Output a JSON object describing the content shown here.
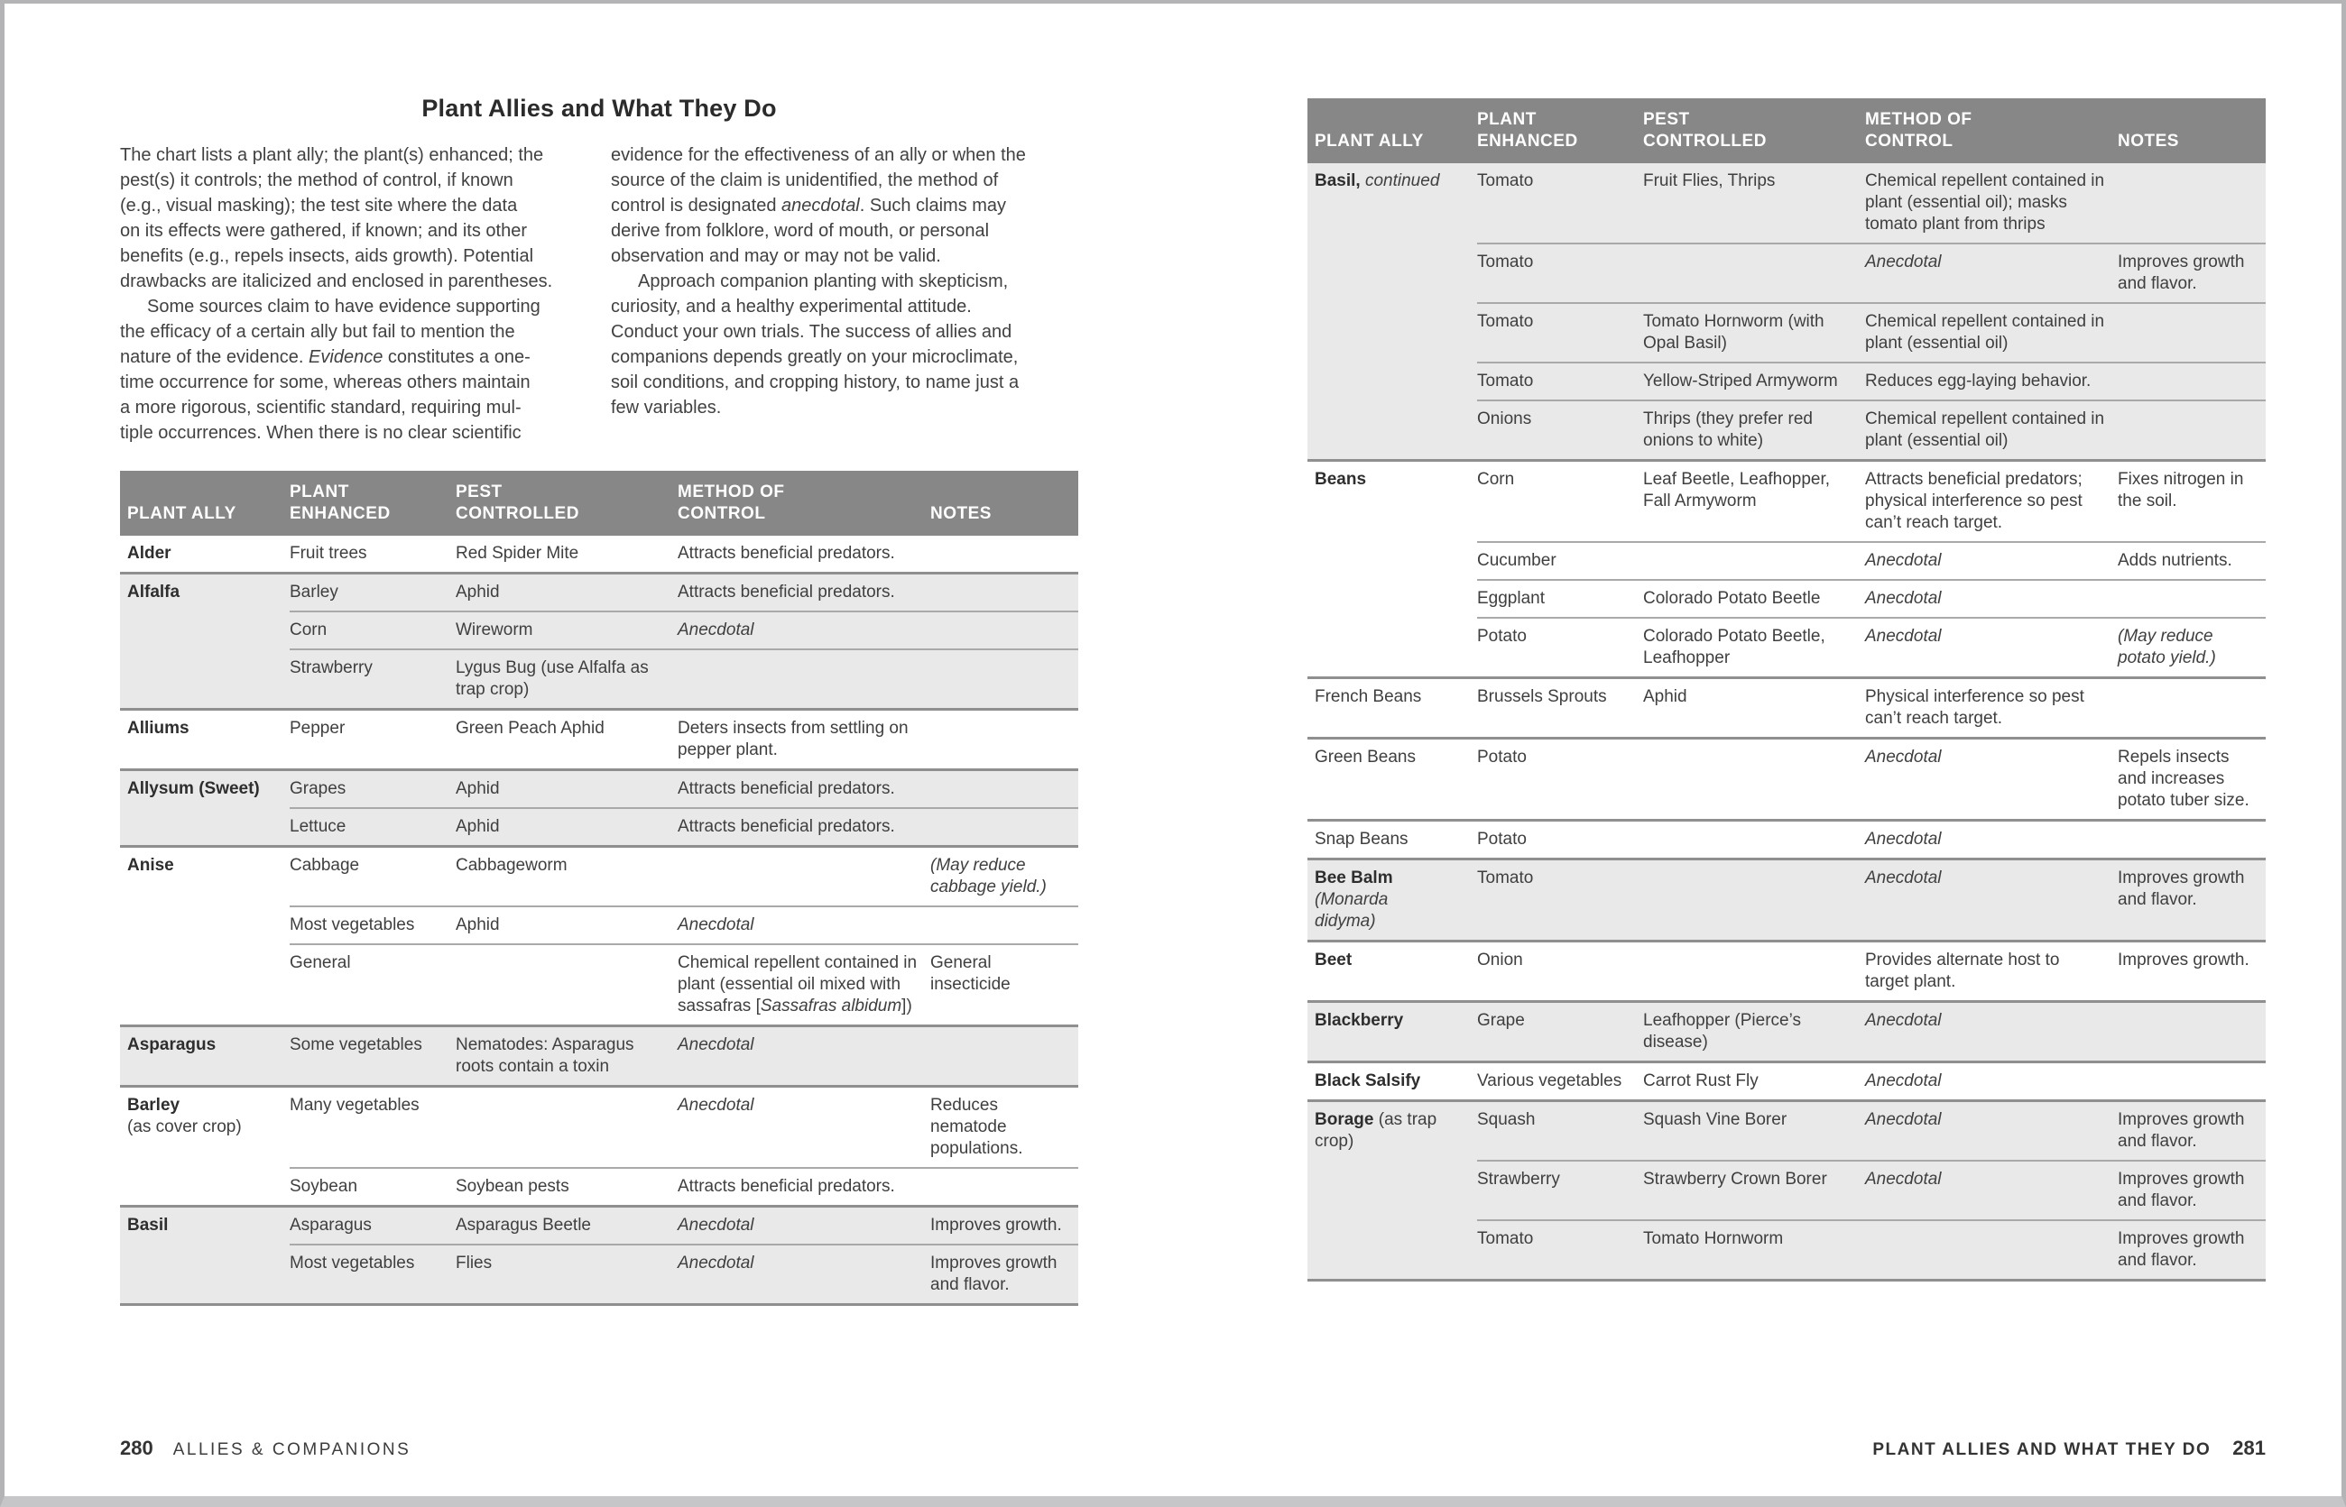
{
  "page_left": {
    "title": "Plant Allies and What They Do",
    "intro": {
      "col1_p1": "The chart lists a plant ally; the plant(s) enhanced; the<br>pest(s) it controls; the method of control, if known<br>(e.g., visual masking); the test site where the data<br>on its effects were gathered, if known; and its other<br>benefits (e.g., repels insects, aids growth). Potential<br>drawbacks are italicized and enclosed in parentheses.",
      "col1_p2": "Some sources claim to have evidence supporting<br>the efficacy of a certain ally but fail to mention the<br>nature of the evidence. <i>Evidence</i> constitutes a one-<br>time occurrence for some, whereas others maintain<br>a more rigorous, scientific standard, requiring mul-<br>tiple occurrences. When there is no clear scientific",
      "col2_p1": "evidence for the effectiveness of an ally or when the<br>source of the claim is unidentified, the method of<br>control is designated <i>anecdotal</i>. Such claims may<br>derive from folklore, word of mouth, or personal<br>observation and may or may not be valid.",
      "col2_p2": "Approach companion planting with skepticism,<br>curiosity, and a healthy experimental attitude.<br>Conduct your own trials. The success of allies and<br>companions depends greatly on your microclimate,<br>soil conditions, and cropping history, to name just a<br>few variables."
    },
    "footer": {
      "page_number": "280",
      "section": "ALLIES & COMPANIONS"
    }
  },
  "page_right": {
    "footer": {
      "section": "PLANT ALLIES AND WHAT THEY DO",
      "page_number": "281"
    }
  },
  "table": {
    "headers": [
      "PLANT ALLY",
      "PLANT<br>ENHANCED",
      "PEST<br>CONTROLLED",
      "METHOD OF<br>CONTROL",
      "NOTES"
    ]
  },
  "tables": [
    {
      "id": "left-table",
      "groups": [
        {
          "ally": "<b>Alder</b>",
          "shaded": false,
          "rows": [
            {
              "enhanced": "Fruit trees",
              "pest": "Red Spider Mite",
              "method": "Attracts beneficial predators.",
              "notes": ""
            }
          ]
        },
        {
          "ally": "<b>Alfalfa</b>",
          "shaded": true,
          "rows": [
            {
              "enhanced": "Barley",
              "pest": "Aphid",
              "method": "Attracts beneficial predators.",
              "notes": ""
            },
            {
              "enhanced": "Corn",
              "pest": "Wireworm",
              "method": "<i>Anecdotal</i>",
              "notes": ""
            },
            {
              "enhanced": "Strawberry",
              "pest": "Lygus Bug (use Alfalfa as trap crop)",
              "method": "",
              "notes": ""
            }
          ]
        },
        {
          "ally": "<b>Alliums</b>",
          "shaded": false,
          "rows": [
            {
              "enhanced": "Pepper",
              "pest": "Green Peach Aphid",
              "method": "Deters insects from settling on pepper plant.",
              "notes": ""
            }
          ]
        },
        {
          "ally": "<b>Allysum (Sweet)</b>",
          "shaded": true,
          "rows": [
            {
              "enhanced": "Grapes",
              "pest": "Aphid",
              "method": "Attracts beneficial predators.",
              "notes": ""
            },
            {
              "enhanced": "Lettuce",
              "pest": "Aphid",
              "method": "Attracts beneficial predators.",
              "notes": ""
            }
          ]
        },
        {
          "ally": "<b>Anise</b>",
          "shaded": false,
          "rows": [
            {
              "enhanced": "Cabbage",
              "pest": "Cabbageworm",
              "method": "",
              "notes": "<i>(May reduce cabbage yield.)</i>"
            },
            {
              "enhanced": "Most vegetables",
              "pest": "Aphid",
              "method": "<i>Anecdotal</i>",
              "notes": ""
            },
            {
              "enhanced": "General",
              "pest": "",
              "method": "Chemical repellent contained in plant (essential oil mixed with sassafras [<i>Sassafras albidum</i>])",
              "notes": "General insecticide"
            }
          ]
        },
        {
          "ally": "<b>Asparagus</b>",
          "shaded": true,
          "rows": [
            {
              "enhanced": "Some vegetables",
              "pest": "Nematodes: Asparagus roots contain a toxin",
              "method": "<i>Anecdotal</i>",
              "notes": ""
            }
          ]
        },
        {
          "ally": "<b>Barley</b><br>(as cover crop)",
          "shaded": false,
          "rows": [
            {
              "enhanced": "Many vegetables",
              "pest": "",
              "method": "<i>Anecdotal</i>",
              "notes": "Reduces nematode populations."
            },
            {
              "enhanced": "Soybean",
              "pest": "Soybean pests",
              "method": "Attracts beneficial predators.",
              "notes": ""
            }
          ]
        },
        {
          "ally": "<b>Basil</b>",
          "shaded": true,
          "rows": [
            {
              "enhanced": "Asparagus",
              "pest": "Asparagus Beetle",
              "method": "<i>Anecdotal</i>",
              "notes": "Improves growth."
            },
            {
              "enhanced": "Most vegetables",
              "pest": "Flies",
              "method": "<i>Anecdotal</i>",
              "notes": "Improves growth and flavor."
            }
          ]
        }
      ]
    },
    {
      "id": "right-table",
      "groups": [
        {
          "ally": "<b>Basil,</b> <i>continued</i>",
          "shaded": true,
          "rows": [
            {
              "enhanced": "Tomato",
              "pest": "Fruit Flies, Thrips",
              "method": "Chemical repellent contained in plant (essential oil); masks tomato plant from thrips",
              "notes": ""
            },
            {
              "enhanced": "Tomato",
              "pest": "",
              "method": "<i>Anecdotal</i>",
              "notes": "Improves growth and flavor."
            },
            {
              "enhanced": "Tomato",
              "pest": "Tomato Hornworm (with Opal Basil)",
              "method": "Chemical repellent contained in plant (essential oil)",
              "notes": ""
            },
            {
              "enhanced": "Tomato",
              "pest": "Yellow-Striped Armyworm",
              "method": "Reduces egg-laying behavior.",
              "notes": ""
            },
            {
              "enhanced": "Onions",
              "pest": "Thrips (they prefer red onions to white)",
              "method": "Chemical repellent contained in plant (essential oil)",
              "notes": ""
            }
          ]
        },
        {
          "ally": "<b>Beans</b>",
          "shaded": false,
          "rows": [
            {
              "enhanced": "Corn",
              "pest": "Leaf Beetle, Leafhopper, Fall Armyworm",
              "method": "Attracts beneficial predators; physical interference so pest can’t reach target.",
              "notes": "Fixes nitrogen in the soil."
            },
            {
              "enhanced": "Cucumber",
              "pest": "",
              "method": "<i>Anecdotal</i>",
              "notes": "Adds nutrients."
            },
            {
              "enhanced": "Eggplant",
              "pest": "Colorado Potato Beetle",
              "method": "<i>Anecdotal</i>",
              "notes": ""
            },
            {
              "enhanced": "Potato",
              "pest": "Colorado Potato Beetle, Leafhopper",
              "method": "<i>Anecdotal</i>",
              "notes": "<i>(May reduce potato yield.)</i>"
            }
          ]
        },
        {
          "ally": "French Beans",
          "shaded": false,
          "rows": [
            {
              "enhanced": "Brussels Sprouts",
              "pest": "Aphid",
              "method": "Physical interference so pest can’t reach target.",
              "notes": ""
            }
          ]
        },
        {
          "ally": "Green Beans",
          "shaded": false,
          "rows": [
            {
              "enhanced": "Potato",
              "pest": "",
              "method": "<i>Anecdotal</i>",
              "notes": "Repels insects and increases potato tuber size."
            }
          ]
        },
        {
          "ally": "Snap Beans",
          "shaded": false,
          "rows": [
            {
              "enhanced": "Potato",
              "pest": "",
              "method": "<i>Anecdotal</i>",
              "notes": ""
            }
          ]
        },
        {
          "ally": "<b>Bee Balm</b><br><i>(Monarda</i><br><i>didyma)</i>",
          "shaded": true,
          "rows": [
            {
              "enhanced": "Tomato",
              "pest": "",
              "method": "<i>Anecdotal</i>",
              "notes": "Improves growth and flavor."
            }
          ]
        },
        {
          "ally": "<b>Beet</b>",
          "shaded": false,
          "rows": [
            {
              "enhanced": "Onion",
              "pest": "",
              "method": "Provides alternate host to target plant.",
              "notes": "Improves growth."
            }
          ]
        },
        {
          "ally": "<b>Blackberry</b>",
          "shaded": true,
          "rows": [
            {
              "enhanced": "Grape",
              "pest": "Leafhopper (Pierce’s disease)",
              "method": "<i>Anecdotal</i>",
              "notes": ""
            }
          ]
        },
        {
          "ally": "<b>Black Salsify</b>",
          "shaded": false,
          "rows": [
            {
              "enhanced": "Various vegetables",
              "pest": "Carrot Rust Fly",
              "method": "<i>Anecdotal</i>",
              "notes": ""
            }
          ]
        },
        {
          "ally": "<b>Borage</b> (as trap crop)",
          "shaded": true,
          "rows": [
            {
              "enhanced": "Squash",
              "pest": "Squash Vine Borer",
              "method": "<i>Anecdotal</i>",
              "notes": "Improves growth and flavor."
            },
            {
              "enhanced": "Strawberry",
              "pest": "Strawberry Crown Borer",
              "method": "<i>Anecdotal</i>",
              "notes": "Improves growth and flavor."
            },
            {
              "enhanced": "Tomato",
              "pest": "Tomato Hornworm",
              "method": "",
              "notes": "Improves growth and flavor."
            }
          ]
        }
      ]
    }
  ],
  "colors": {
    "header_bg": "#878787",
    "header_text": "#ffffff",
    "row_shade": "#e9e9e9",
    "group_border": "#8f8f8f",
    "row_border": "#a9a9a9",
    "body_text": "#3f3f3f",
    "frame_border": "#b4b4b6",
    "frame_bottom": "#c6c6c8"
  }
}
